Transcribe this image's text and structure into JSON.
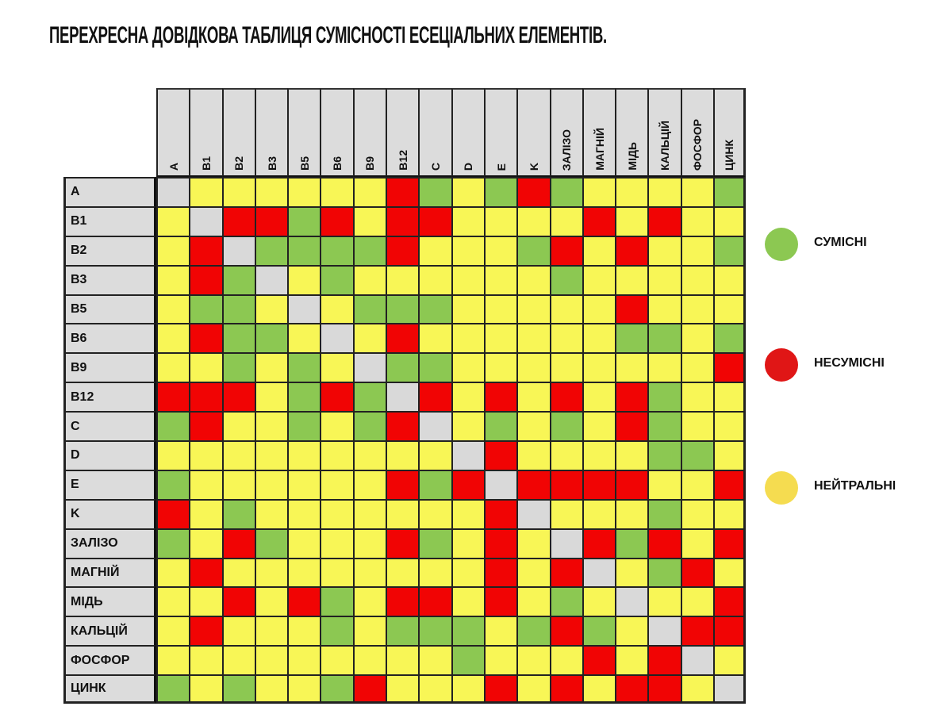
{
  "title": "ПЕРЕХРЕСНА ДОВІДКОВА ТАБЛИЦЯ СУМІСНОСТІ ЕСЕЦІАЛЬНИХ ЕЛЕМЕНТІВ.",
  "colors": {
    "G": "#8cc852",
    "R": "#f10404",
    "Y": "#f8f656",
    "x": "#d9d9d9",
    "legend_green": "#8cc852",
    "legend_red": "#e01616",
    "legend_yellow": "#f5dc50"
  },
  "legend": [
    {
      "key": "G",
      "label": "СУМІСНІ",
      "color": "#8cc852"
    },
    {
      "key": "R",
      "label": "НЕСУМІСНІ",
      "color": "#e01616"
    },
    {
      "key": "Y",
      "label": "НЕЙТРАЛЬНІ",
      "color": "#f5dc50"
    }
  ],
  "chart_data": {
    "type": "heatmap",
    "title": "ПЕРЕХРЕСНА ДОВІДКОВА ТАБЛИЦЯ СУМІСНОСТІ ЕСЕЦІАЛЬНИХ ЕЛЕМЕНТІВ.",
    "categories_x": [
      "A",
      "B1",
      "B2",
      "B3",
      "B5",
      "B6",
      "B9",
      "B12",
      "C",
      "D",
      "E",
      "K",
      "ЗАЛІЗО",
      "МАГНІЙ",
      "МІДЬ",
      "КАЛЬЦІЙ",
      "ФОСФОР",
      "ЦИНК"
    ],
    "categories_y": [
      "A",
      "B1",
      "B2",
      "B3",
      "B5",
      "B6",
      "B9",
      "B12",
      "C",
      "D",
      "E",
      "K",
      "ЗАЛІЗО",
      "МАГНІЙ",
      "МІДЬ",
      "КАЛЬЦІЙ",
      "ФОСФОР",
      "ЦИНК"
    ],
    "value_legend": {
      "G": "СУМІСНІ",
      "R": "НЕСУМІСНІ",
      "Y": "НЕЙТРАЛЬНІ",
      "x": "—"
    },
    "matrix": [
      [
        "x",
        "Y",
        "Y",
        "Y",
        "Y",
        "Y",
        "Y",
        "R",
        "G",
        "Y",
        "G",
        "R",
        "G",
        "Y",
        "Y",
        "Y",
        "Y",
        "G"
      ],
      [
        "Y",
        "x",
        "R",
        "R",
        "G",
        "R",
        "Y",
        "R",
        "R",
        "Y",
        "Y",
        "Y",
        "Y",
        "R",
        "Y",
        "R",
        "Y",
        "Y"
      ],
      [
        "Y",
        "R",
        "x",
        "G",
        "G",
        "G",
        "G",
        "R",
        "Y",
        "Y",
        "Y",
        "G",
        "R",
        "Y",
        "R",
        "Y",
        "Y",
        "G"
      ],
      [
        "Y",
        "R",
        "G",
        "x",
        "Y",
        "G",
        "Y",
        "Y",
        "Y",
        "Y",
        "Y",
        "Y",
        "G",
        "Y",
        "Y",
        "Y",
        "Y",
        "Y"
      ],
      [
        "Y",
        "G",
        "G",
        "Y",
        "x",
        "Y",
        "G",
        "G",
        "G",
        "Y",
        "Y",
        "Y",
        "Y",
        "Y",
        "R",
        "Y",
        "Y",
        "Y"
      ],
      [
        "Y",
        "R",
        "G",
        "G",
        "Y",
        "x",
        "Y",
        "R",
        "Y",
        "Y",
        "Y",
        "Y",
        "Y",
        "Y",
        "G",
        "G",
        "Y",
        "G"
      ],
      [
        "Y",
        "Y",
        "G",
        "Y",
        "G",
        "Y",
        "x",
        "G",
        "G",
        "Y",
        "Y",
        "Y",
        "Y",
        "Y",
        "Y",
        "Y",
        "Y",
        "R"
      ],
      [
        "R",
        "R",
        "R",
        "Y",
        "G",
        "R",
        "G",
        "x",
        "R",
        "Y",
        "R",
        "Y",
        "R",
        "Y",
        "R",
        "G",
        "Y",
        "Y"
      ],
      [
        "G",
        "R",
        "Y",
        "Y",
        "G",
        "Y",
        "G",
        "R",
        "x",
        "Y",
        "G",
        "Y",
        "G",
        "Y",
        "R",
        "G",
        "Y",
        "Y"
      ],
      [
        "Y",
        "Y",
        "Y",
        "Y",
        "Y",
        "Y",
        "Y",
        "Y",
        "Y",
        "x",
        "R",
        "Y",
        "Y",
        "Y",
        "Y",
        "G",
        "G",
        "Y"
      ],
      [
        "G",
        "Y",
        "Y",
        "Y",
        "Y",
        "Y",
        "Y",
        "R",
        "G",
        "R",
        "x",
        "R",
        "R",
        "R",
        "R",
        "Y",
        "Y",
        "R"
      ],
      [
        "R",
        "Y",
        "G",
        "Y",
        "Y",
        "Y",
        "Y",
        "Y",
        "Y",
        "Y",
        "R",
        "x",
        "Y",
        "Y",
        "Y",
        "G",
        "Y",
        "Y"
      ],
      [
        "G",
        "Y",
        "R",
        "G",
        "Y",
        "Y",
        "Y",
        "R",
        "G",
        "Y",
        "R",
        "Y",
        "x",
        "R",
        "G",
        "R",
        "Y",
        "R"
      ],
      [
        "Y",
        "R",
        "Y",
        "Y",
        "Y",
        "Y",
        "Y",
        "Y",
        "Y",
        "Y",
        "R",
        "Y",
        "R",
        "x",
        "Y",
        "G",
        "R",
        "Y"
      ],
      [
        "Y",
        "Y",
        "R",
        "Y",
        "R",
        "G",
        "Y",
        "R",
        "R",
        "Y",
        "R",
        "Y",
        "G",
        "Y",
        "x",
        "Y",
        "Y",
        "R"
      ],
      [
        "Y",
        "R",
        "Y",
        "Y",
        "Y",
        "G",
        "Y",
        "G",
        "G",
        "G",
        "Y",
        "G",
        "R",
        "G",
        "Y",
        "x",
        "R",
        "R"
      ],
      [
        "Y",
        "Y",
        "Y",
        "Y",
        "Y",
        "Y",
        "Y",
        "Y",
        "Y",
        "G",
        "Y",
        "Y",
        "Y",
        "R",
        "Y",
        "R",
        "x",
        "Y"
      ],
      [
        "G",
        "Y",
        "G",
        "Y",
        "Y",
        "G",
        "R",
        "Y",
        "Y",
        "Y",
        "R",
        "Y",
        "R",
        "Y",
        "R",
        "R",
        "Y",
        "x"
      ]
    ],
    "legend_position": "right",
    "grid": true
  }
}
